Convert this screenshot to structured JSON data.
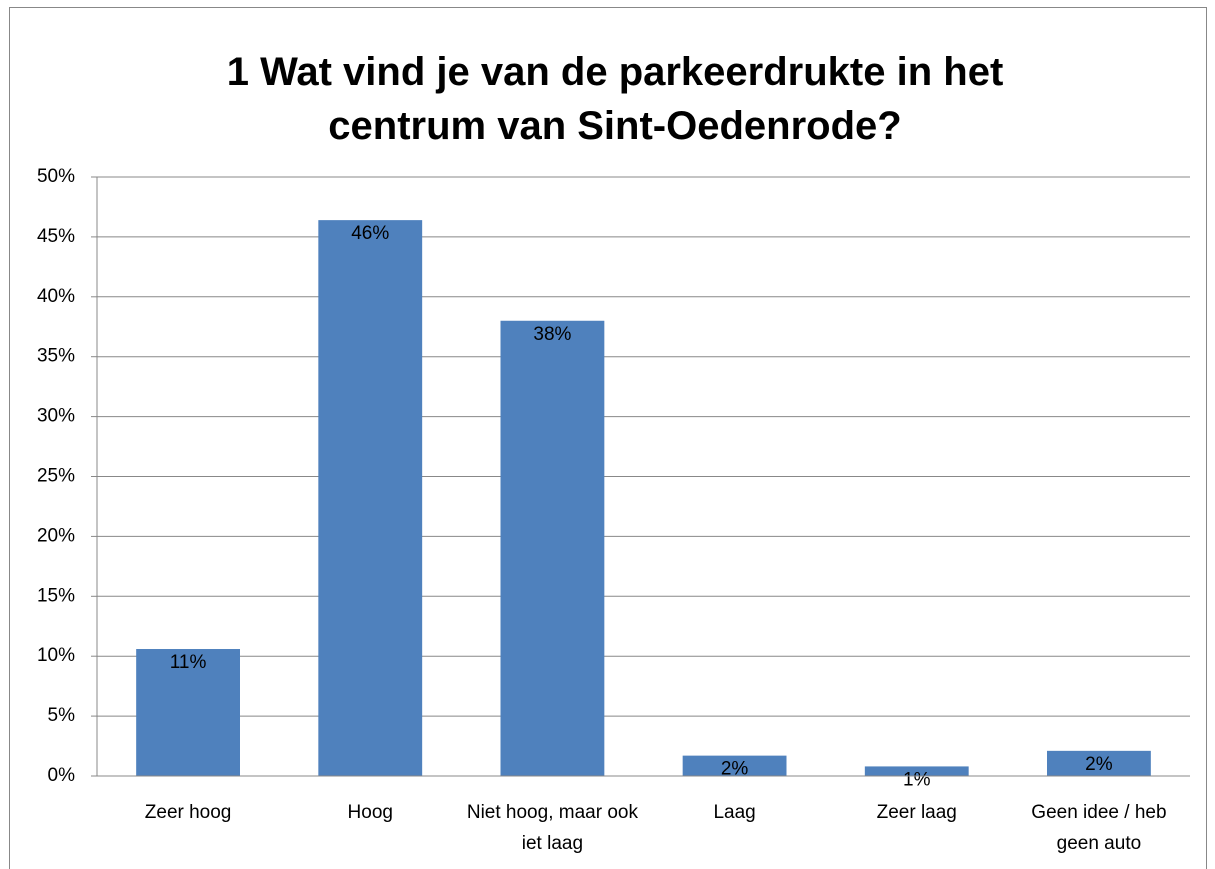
{
  "chart_data": {
    "type": "bar",
    "title": "1 Wat vind je van de parkeerdrukte in het centrum van Sint-Oedenrode?",
    "categories": [
      "Zeer hoog",
      "Hoog",
      "Niet hoog, maar ook iet laag",
      "Laag",
      "Zeer laag",
      "Geen idee / heb geen auto"
    ],
    "values": [
      10.6,
      46.4,
      38.0,
      1.7,
      0.8,
      2.1
    ],
    "value_labels": [
      "11%",
      "46%",
      "38%",
      "2%",
      "1%",
      "2%"
    ],
    "color": "#4f81bd",
    "ylim": [
      0,
      50
    ],
    "yticks": [
      {
        "value": 0,
        "label": "0%"
      },
      {
        "value": 5,
        "label": "5%"
      },
      {
        "value": 10,
        "label": "10%"
      },
      {
        "value": 15,
        "label": "15%"
      },
      {
        "value": 20,
        "label": "20%"
      },
      {
        "value": 25,
        "label": "25%"
      },
      {
        "value": 30,
        "label": "30%"
      },
      {
        "value": 35,
        "label": "35%"
      },
      {
        "value": 40,
        "label": "40%"
      },
      {
        "value": 45,
        "label": "45%"
      },
      {
        "value": 50,
        "label": "50%"
      }
    ],
    "grid": true
  }
}
